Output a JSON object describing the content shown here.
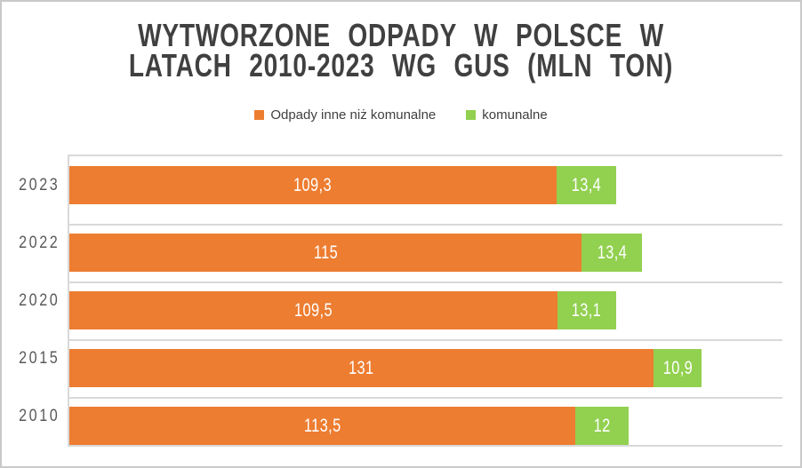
{
  "frame": {
    "background": "#FFFFFF",
    "border_color": "#C9C9C9"
  },
  "chart_data": {
    "type": "bar",
    "orientation": "horizontal",
    "stacked": true,
    "title": "WYTWORZONE ODPADY W POLSCE W LATACH 2010-2023 WG GUS (MLN TON)",
    "title_lines": [
      "WYTWORZONE ODPADY W POLSCE W",
      "LATACH 2010-2023 WG GUS (MLN TON)"
    ],
    "categories": [
      "2023",
      "2022",
      "2020",
      "2015",
      "2010"
    ],
    "series": [
      {
        "name": "Odpady inne niż komunalne",
        "color": "#ED7D31",
        "values": [
          109.3,
          115,
          109.5,
          131,
          113.5
        ],
        "labels": [
          "109,3",
          "115",
          "109,5",
          "131",
          "113,5"
        ]
      },
      {
        "name": "komunalne",
        "color": "#92D050",
        "values": [
          13.4,
          13.4,
          13.1,
          10.9,
          12
        ],
        "labels": [
          "13,4",
          "13,4",
          "13,1",
          "10,9",
          "12"
        ]
      }
    ],
    "xlim": [
      0,
      160
    ],
    "x_axis_labels_visible": false,
    "legend_position": "top-center",
    "gridlines": "horizontal lines at category boundaries",
    "colors": {
      "gridline": "#D9D9D9",
      "title_text": "#404040",
      "category_label_text": "#595959",
      "bar_value_label_text": "#FFFFFF",
      "legend_text": "#404040"
    }
  }
}
